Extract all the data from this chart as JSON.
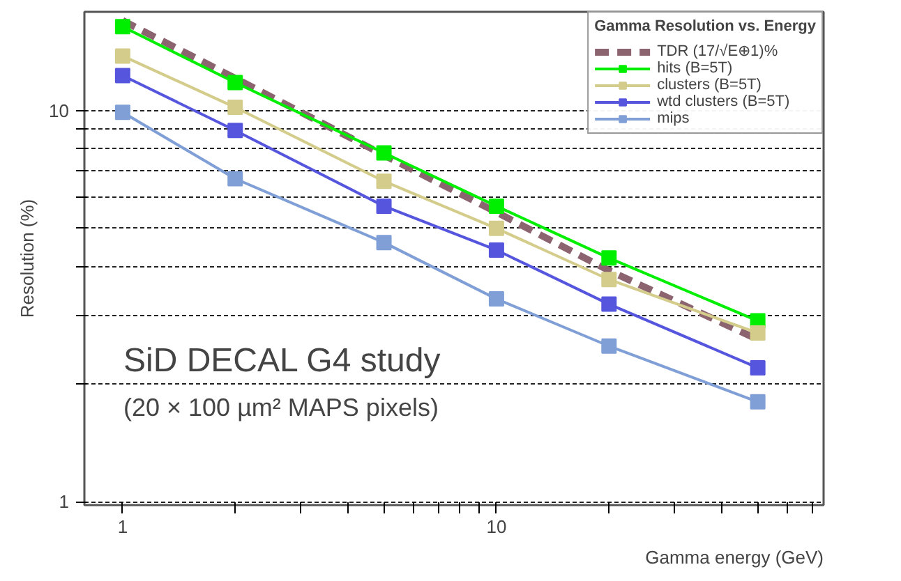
{
  "chart_data": {
    "type": "line",
    "xlabel": "Gamma energy (GeV)",
    "ylabel": "Resolution (%)",
    "legend_title": "Gamma Resolution vs. Energy",
    "x": [
      1,
      2,
      5,
      10,
      20,
      50
    ],
    "log": "xy",
    "grid": "y",
    "legend": "top right",
    "xlim": [
      0.79,
      75
    ],
    "ylim": [
      0.98,
      17.9
    ],
    "xticks": [
      1,
      {
        "value": 2,
        "label": null
      },
      {
        "value": 3,
        "label": null
      },
      {
        "value": 4,
        "label": null
      },
      {
        "value": 5,
        "label": null
      },
      {
        "value": 6,
        "label": null
      },
      {
        "value": 7,
        "label": null
      },
      {
        "value": 8,
        "label": null
      },
      {
        "value": 9,
        "label": null
      },
      10,
      {
        "value": 20,
        "label": null
      },
      {
        "value": 30,
        "label": null
      },
      {
        "value": 40,
        "label": null
      },
      {
        "value": 50,
        "label": null
      },
      {
        "value": 60,
        "label": null
      },
      {
        "value": 70,
        "label": null
      }
    ],
    "yticks": [
      1,
      {
        "value": 2,
        "label": null
      },
      {
        "value": 3,
        "label": null
      },
      {
        "value": 4,
        "label": null
      },
      {
        "value": 5,
        "label": null
      },
      {
        "value": 6,
        "label": null
      },
      {
        "value": 7,
        "label": null
      },
      {
        "value": 8,
        "label": null
      },
      {
        "value": 9,
        "label": null
      },
      10
    ],
    "series": [
      {
        "name": "TDR (17/√E⊕1)%",
        "color": "#8c6470",
        "line_style": "dashed",
        "marker": "none",
        "values": [
          17.0,
          12.1,
          7.7,
          5.5,
          3.9,
          2.6
        ]
      },
      {
        "name": "hits (B=5T)",
        "color": "#00ee00",
        "line_style": "solid",
        "marker": "square",
        "values": [
          16.4,
          11.8,
          7.8,
          5.7,
          4.2,
          2.9
        ]
      },
      {
        "name": "clusters (B=5T)",
        "color": "#d4cc8a",
        "line_style": "solid",
        "marker": "square",
        "values": [
          13.8,
          10.2,
          6.6,
          5.0,
          3.7,
          2.7
        ]
      },
      {
        "name": "wtd clusters (B=5T)",
        "color": "#5555dd",
        "line_style": "solid",
        "marker": "square",
        "values": [
          12.3,
          8.9,
          5.7,
          4.4,
          3.2,
          2.2
        ]
      },
      {
        "name": "mips",
        "color": "#7f9fd6",
        "line_style": "solid",
        "marker": "square",
        "values": [
          9.9,
          6.7,
          4.6,
          3.3,
          2.5,
          1.8
        ]
      }
    ],
    "annotations": [
      "SiD DECAL G4 study",
      "(20 × 100 µm² MAPS pixels)"
    ]
  }
}
